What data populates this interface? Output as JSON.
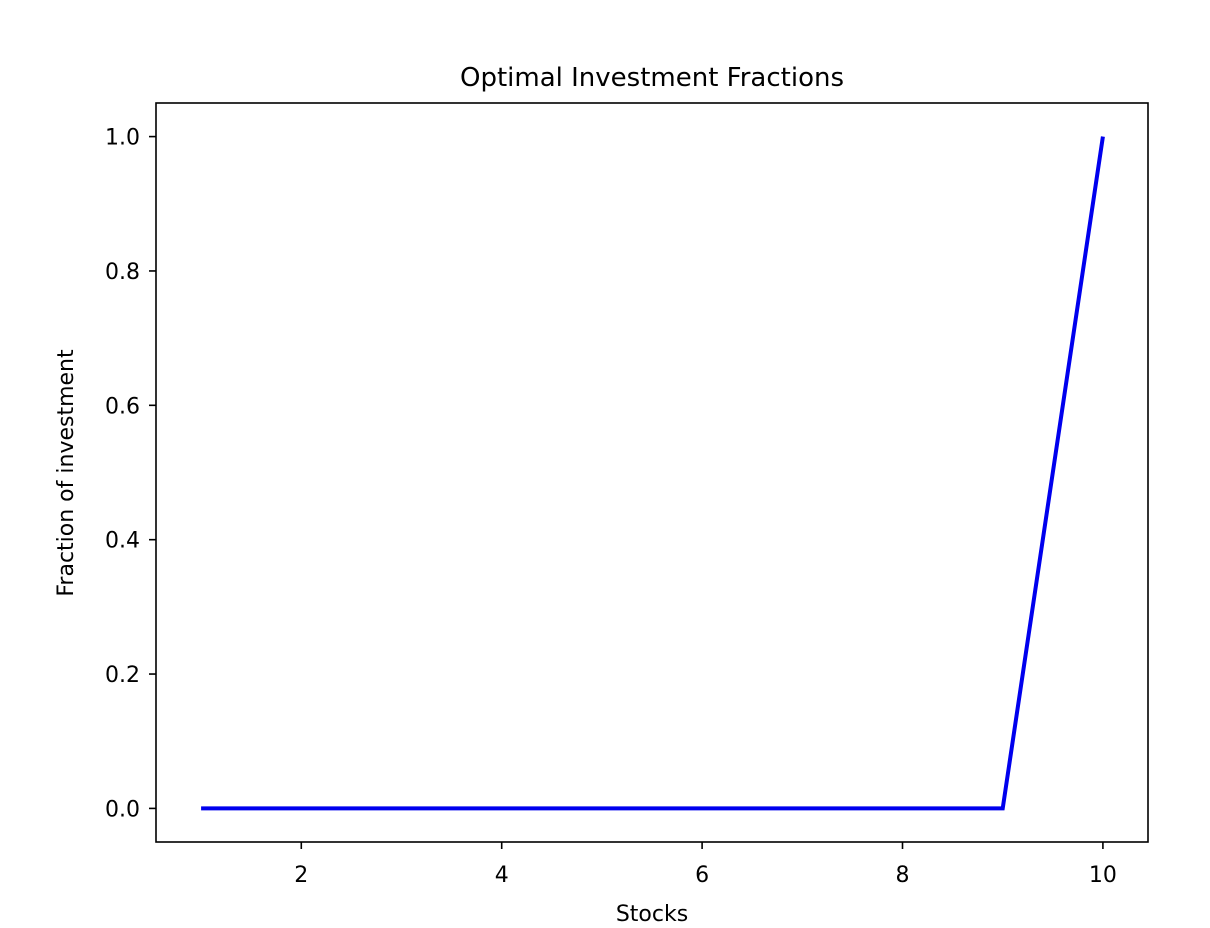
{
  "chart_data": {
    "type": "line",
    "title": "Optimal Investment Fractions",
    "xlabel": "Stocks",
    "ylabel": "Fraction of investment",
    "xlim": [
      0.55,
      10.45
    ],
    "ylim": [
      -0.05,
      1.05
    ],
    "x_ticks": [
      2,
      4,
      6,
      8,
      10
    ],
    "x_tick_labels": [
      "2",
      "4",
      "6",
      "8",
      "10"
    ],
    "y_ticks": [
      0.0,
      0.2,
      0.4,
      0.6,
      0.8,
      1.0
    ],
    "y_tick_labels": [
      "0.0",
      "0.2",
      "0.4",
      "0.6",
      "0.8",
      "1.0"
    ],
    "grid": false,
    "legend": "none",
    "series": [
      {
        "color": "#0000ee",
        "x": [
          1,
          2,
          3,
          4,
          5,
          6,
          7,
          8,
          9,
          10
        ],
        "y": [
          0,
          0,
          0,
          0,
          0,
          0,
          0,
          0,
          0,
          1.0
        ]
      }
    ]
  }
}
